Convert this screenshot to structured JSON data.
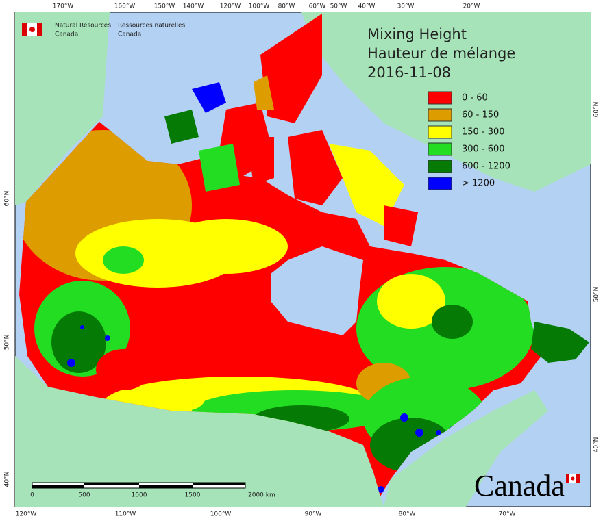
{
  "header": {
    "agency_en": [
      "Natural Resources",
      "Canada"
    ],
    "agency_fr": [
      "Ressources naturelles",
      "Canada"
    ]
  },
  "title": [
    "Mixing Height",
    "Hauteur de mélange",
    "2016-11-08"
  ],
  "legend": [
    {
      "label": "0 - 60",
      "color": "#ff0000"
    },
    {
      "label": "60 - 150",
      "color": "#dd9d00"
    },
    {
      "label": "150 - 300",
      "color": "#ffff00"
    },
    {
      "label": "300 - 600",
      "color": "#22dd22"
    },
    {
      "label": "600 - 1200",
      "color": "#057a05"
    },
    {
      "label": "> 1200",
      "color": "#0000ff"
    }
  ],
  "longitude_top": [
    "170°W",
    "160°W",
    "150°W",
    "140°W",
    "120°W",
    "100°W",
    "80°W",
    "60°W",
    "50°W",
    "40°W",
    "30°W",
    "20°W"
  ],
  "longitude_bottom": [
    "120°W",
    "110°W",
    "100°W",
    "90°W",
    "80°W",
    "70°W"
  ],
  "latitude_left": [
    "60°N",
    "50°N",
    "40°N"
  ],
  "latitude_right": [
    "60°N",
    "50°N",
    "40°N"
  ],
  "scale_bar": [
    "0",
    "500",
    "1000",
    "1500",
    "2000 km"
  ],
  "wordmark": "Canada"
}
